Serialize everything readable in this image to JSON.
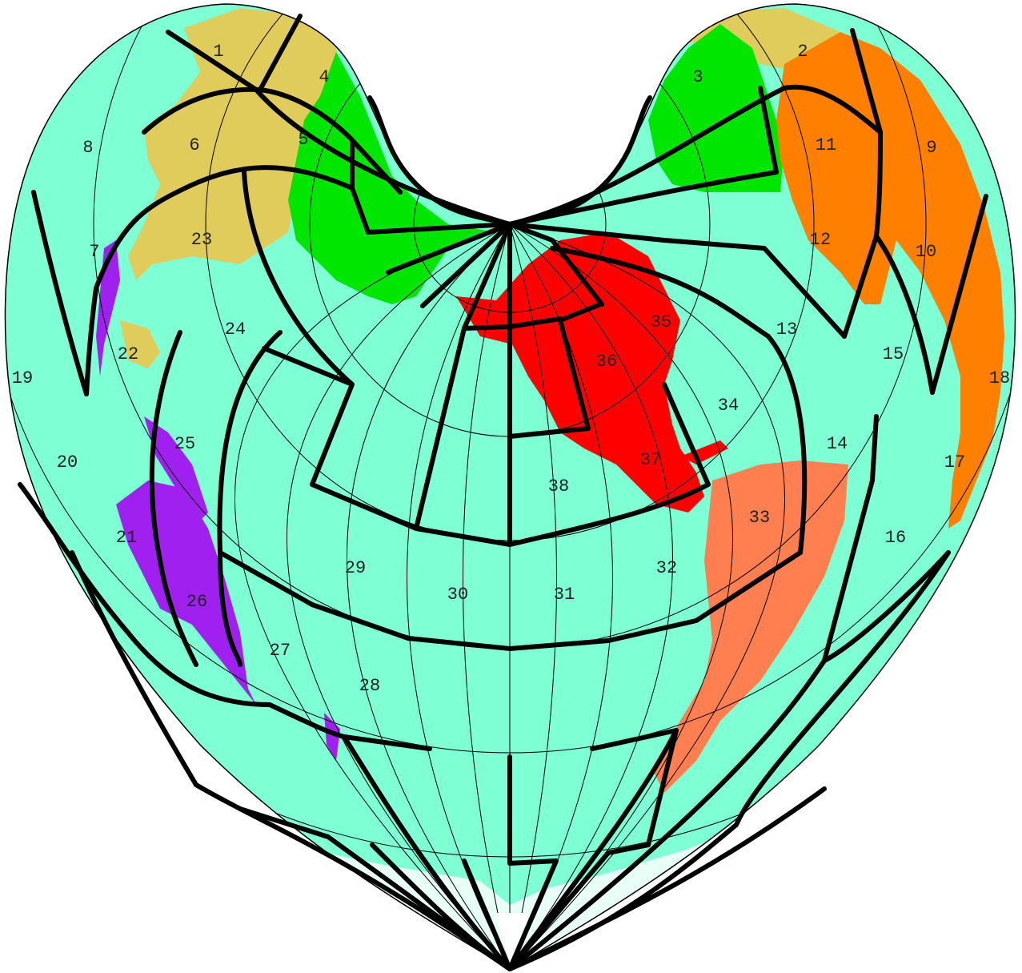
{
  "map": {
    "projection": "heart-shaped",
    "colors": {
      "ocean": "#7fffd4",
      "pole_gap": "#ffffff",
      "graticule": "#000000",
      "region_border": "#000000",
      "label_text": "#222222"
    },
    "landmasses": [
      {
        "name": "north-asia",
        "color": "#e0cc5a"
      },
      {
        "name": "europe-west-asia",
        "color": "#00e600"
      },
      {
        "name": "north-america",
        "color": "#ff0000"
      },
      {
        "name": "south-america",
        "color": "#ff7f50"
      },
      {
        "name": "africa",
        "color": "#ff8000"
      },
      {
        "name": "australia-oceania",
        "color": "#a020f0"
      },
      {
        "name": "antarctica",
        "color": "#e8fff8"
      }
    ],
    "region_labels": [
      "1",
      "2",
      "3",
      "4",
      "5",
      "6",
      "7",
      "8",
      "9",
      "10",
      "11",
      "12",
      "13",
      "14",
      "15",
      "16",
      "17",
      "18",
      "19",
      "20",
      "21",
      "22",
      "23",
      "24",
      "25",
      "26",
      "27",
      "28",
      "29",
      "30",
      "31",
      "32",
      "33",
      "34",
      "35",
      "36",
      "37",
      "38"
    ]
  }
}
